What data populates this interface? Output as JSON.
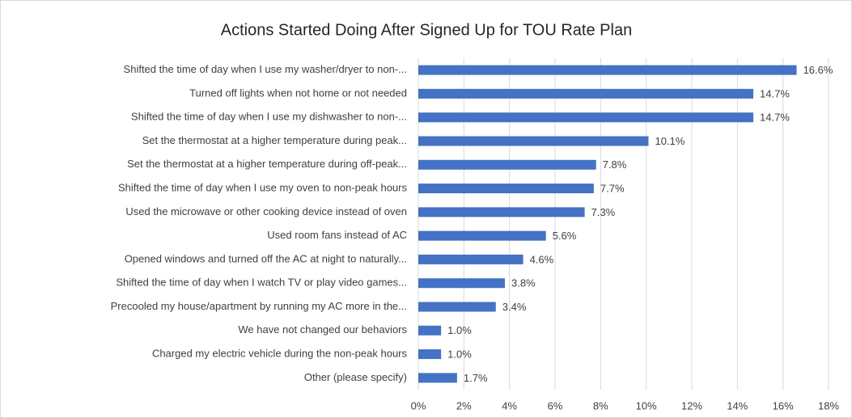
{
  "chart_data": {
    "type": "barh",
    "title": "Actions Started Doing After Signed Up for TOU Rate Plan",
    "categories": [
      "Shifted the time of day when I use my washer/dryer to non-...",
      "Turned off lights when not home or not needed",
      "Shifted the time of day when I use my dishwasher to non-...",
      "Set the thermostat at a higher temperature during peak...",
      "Set the thermostat at a higher temperature during off-peak...",
      "Shifted the time of day when I use my oven to non-peak hours",
      "Used the microwave or other cooking device instead of oven",
      "Used room fans instead of AC",
      "Opened windows and turned off the AC at night to naturally...",
      "Shifted the time of day when I watch TV or play video games...",
      "Precooled my house/apartment by running my AC more in the...",
      "We have not changed our behaviors",
      "Charged my electric vehicle during the non-peak hours",
      "Other (please specify)"
    ],
    "values": [
      16.6,
      14.7,
      14.7,
      10.1,
      7.8,
      7.7,
      7.3,
      5.6,
      4.6,
      3.8,
      3.4,
      1.0,
      1.0,
      1.7
    ],
    "value_labels": [
      "16.6%",
      "14.7%",
      "14.7%",
      "10.1%",
      "7.8%",
      "7.7%",
      "7.3%",
      "5.6%",
      "4.6%",
      "3.8%",
      "3.4%",
      "1.0%",
      "1.0%",
      "1.7%"
    ],
    "color": "#4472c4",
    "xlim": [
      0,
      18
    ],
    "xticks": [
      {
        "value": 0,
        "label": "0%"
      },
      {
        "value": 2,
        "label": "2%"
      },
      {
        "value": 4,
        "label": "4%"
      },
      {
        "value": 6,
        "label": "6%"
      },
      {
        "value": 8,
        "label": "8%"
      },
      {
        "value": 10,
        "label": "10%"
      },
      {
        "value": 12,
        "label": "12%"
      },
      {
        "value": 14,
        "label": "14%"
      },
      {
        "value": 16,
        "label": "16%"
      },
      {
        "value": 18,
        "label": "18%"
      }
    ],
    "grid": true
  }
}
